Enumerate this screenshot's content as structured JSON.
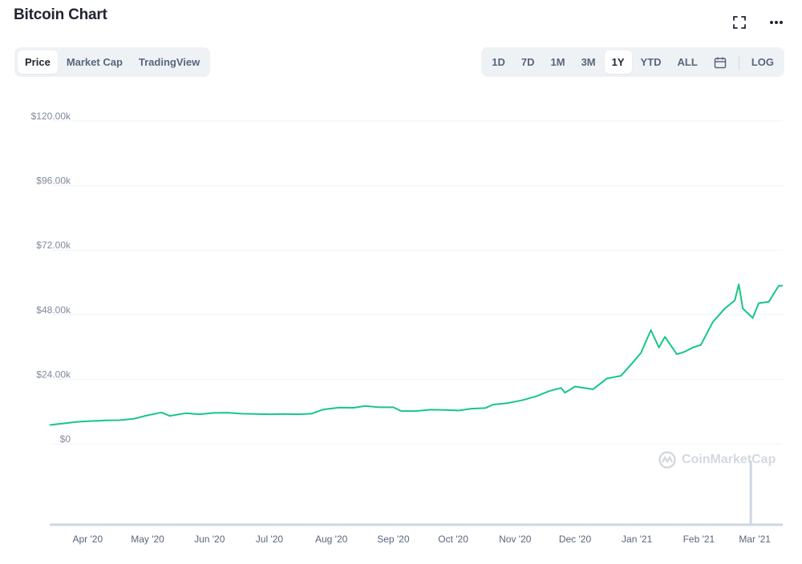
{
  "page": {
    "title": "Bitcoin Chart"
  },
  "top_icons": [
    "fullscreen-icon",
    "more-icon"
  ],
  "view_tabs": [
    {
      "label": "Price",
      "active": true
    },
    {
      "label": "Market Cap",
      "active": false
    },
    {
      "label": "TradingView",
      "active": false
    }
  ],
  "range_tabs": [
    {
      "label": "1D",
      "active": false
    },
    {
      "label": "7D",
      "active": false
    },
    {
      "label": "1M",
      "active": false
    },
    {
      "label": "3M",
      "active": false
    },
    {
      "label": "1Y",
      "active": true
    },
    {
      "label": "YTD",
      "active": false
    },
    {
      "label": "ALL",
      "active": false
    }
  ],
  "calendar_icon": "calendar-icon",
  "log_label": "LOG",
  "watermark": {
    "text": "CoinMarketCap",
    "icon": "coinmarketcap-logo-icon"
  },
  "colors": {
    "line": "#16c784",
    "grid": "#eff2f5",
    "axis_text": "#808a9d",
    "volume": "#cfd6e4"
  },
  "chart_data": {
    "type": "line",
    "title": "",
    "xlabel": "",
    "ylabel": "",
    "ylim": [
      0,
      120000
    ],
    "y_ticks": [
      {
        "value": 0,
        "label": "$0"
      },
      {
        "value": 24000,
        "label": "$24.00k"
      },
      {
        "value": 48000,
        "label": "$48.00k"
      },
      {
        "value": 72000,
        "label": "$72.00k"
      },
      {
        "value": 96000,
        "label": "$96.00k"
      },
      {
        "value": 120000,
        "label": "$120.00k"
      }
    ],
    "x_range": [
      "2020-03-13",
      "2021-03-15"
    ],
    "x_ticks": [
      {
        "date": "2020-04-01",
        "label": "Apr '20"
      },
      {
        "date": "2020-05-01",
        "label": "May '20"
      },
      {
        "date": "2020-06-01",
        "label": "Jun '20"
      },
      {
        "date": "2020-07-01",
        "label": "Jul '20"
      },
      {
        "date": "2020-08-01",
        "label": "Aug '20"
      },
      {
        "date": "2020-09-01",
        "label": "Sep '20"
      },
      {
        "date": "2020-10-01",
        "label": "Oct '20"
      },
      {
        "date": "2020-11-01",
        "label": "Nov '20"
      },
      {
        "date": "2020-12-01",
        "label": "Dec '20"
      },
      {
        "date": "2021-01-01",
        "label": "Jan '21"
      },
      {
        "date": "2021-02-01",
        "label": "Feb '21"
      },
      {
        "date": "2021-03-01",
        "label": "Mar '21"
      }
    ],
    "grid": true,
    "series": [
      {
        "values": [
          [
            "2020-03-13",
            5200
          ],
          [
            "2020-03-20",
            5800
          ],
          [
            "2020-03-27",
            6400
          ],
          [
            "2020-04-03",
            6700
          ],
          [
            "2020-04-10",
            6900
          ],
          [
            "2020-04-17",
            7000
          ],
          [
            "2020-04-24",
            7500
          ],
          [
            "2020-05-01",
            8800
          ],
          [
            "2020-05-08",
            9900
          ],
          [
            "2020-05-12",
            8600
          ],
          [
            "2020-05-20",
            9600
          ],
          [
            "2020-05-27",
            9200
          ],
          [
            "2020-06-03",
            9700
          ],
          [
            "2020-06-10",
            9800
          ],
          [
            "2020-06-17",
            9400
          ],
          [
            "2020-06-24",
            9300
          ],
          [
            "2020-07-01",
            9200
          ],
          [
            "2020-07-08",
            9300
          ],
          [
            "2020-07-15",
            9200
          ],
          [
            "2020-07-22",
            9400
          ],
          [
            "2020-07-28",
            11000
          ],
          [
            "2020-08-05",
            11700
          ],
          [
            "2020-08-12",
            11600
          ],
          [
            "2020-08-18",
            12300
          ],
          [
            "2020-08-25",
            11800
          ],
          [
            "2020-09-01",
            11800
          ],
          [
            "2020-09-05",
            10400
          ],
          [
            "2020-09-12",
            10400
          ],
          [
            "2020-09-20",
            10900
          ],
          [
            "2020-09-27",
            10800
          ],
          [
            "2020-10-04",
            10600
          ],
          [
            "2020-10-10",
            11300
          ],
          [
            "2020-10-17",
            11500
          ],
          [
            "2020-10-21",
            12800
          ],
          [
            "2020-10-28",
            13300
          ],
          [
            "2020-11-05",
            14500
          ],
          [
            "2020-11-12",
            16000
          ],
          [
            "2020-11-18",
            17800
          ],
          [
            "2020-11-24",
            19000
          ],
          [
            "2020-11-26",
            17200
          ],
          [
            "2020-12-01",
            19500
          ],
          [
            "2020-12-10",
            18500
          ],
          [
            "2020-12-17",
            22500
          ],
          [
            "2020-12-24",
            23500
          ],
          [
            "2020-12-30",
            28500
          ],
          [
            "2021-01-03",
            32000
          ],
          [
            "2021-01-08",
            40500
          ],
          [
            "2021-01-12",
            34000
          ],
          [
            "2021-01-15",
            38000
          ],
          [
            "2021-01-21",
            31500
          ],
          [
            "2021-01-25",
            32500
          ],
          [
            "2021-01-29",
            34000
          ],
          [
            "2021-02-02",
            35000
          ],
          [
            "2021-02-08",
            43500
          ],
          [
            "2021-02-14",
            48500
          ],
          [
            "2021-02-19",
            51500
          ],
          [
            "2021-02-21",
            57500
          ],
          [
            "2021-02-23",
            48500
          ],
          [
            "2021-02-28",
            45000
          ],
          [
            "2021-03-03",
            50500
          ],
          [
            "2021-03-08",
            51000
          ],
          [
            "2021-03-13",
            57000
          ],
          [
            "2021-03-15",
            57000
          ]
        ]
      }
    ]
  }
}
